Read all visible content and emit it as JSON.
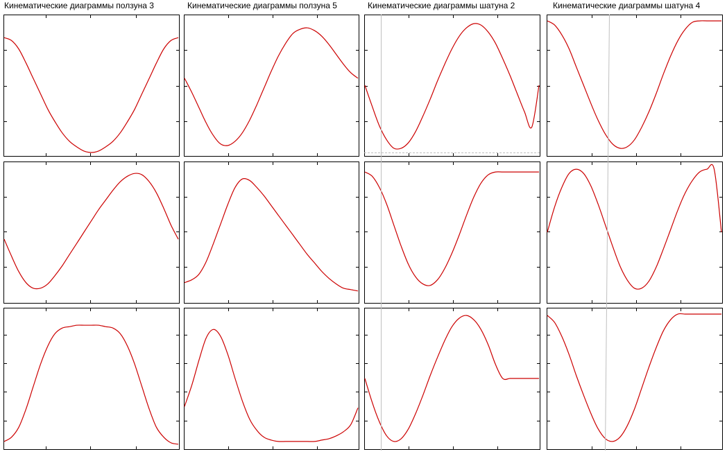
{
  "colors": {
    "curve": "#cc0000",
    "frame": "#000000",
    "cursor": "#bfbfbf",
    "background": "#ffffff"
  },
  "chart_data": [
    {
      "title": "Кинематические диаграммы ползуна 3",
      "type": "line",
      "rows": [
        {
          "x": [
            0,
            1,
            2,
            3,
            4,
            5,
            6,
            7,
            8,
            9,
            10,
            11,
            12,
            13,
            14,
            15,
            16,
            17,
            18,
            19,
            20,
            21,
            22,
            23,
            24
          ],
          "values": [
            0.84,
            0.82,
            0.76,
            0.66,
            0.55,
            0.44,
            0.33,
            0.24,
            0.16,
            0.1,
            0.06,
            0.03,
            0.02,
            0.03,
            0.06,
            0.1,
            0.16,
            0.24,
            0.33,
            0.44,
            0.55,
            0.66,
            0.76,
            0.82,
            0.84
          ],
          "ylim": [
            0,
            1
          ]
        },
        {
          "x": [
            0,
            1,
            2,
            3,
            4,
            5,
            6,
            7,
            8,
            9,
            10,
            11,
            12,
            13,
            14,
            15,
            16,
            17,
            18,
            19,
            20,
            21,
            22,
            23,
            24
          ],
          "values": [
            0.45,
            0.33,
            0.22,
            0.14,
            0.1,
            0.1,
            0.13,
            0.19,
            0.26,
            0.34,
            0.42,
            0.5,
            0.58,
            0.66,
            0.73,
            0.8,
            0.86,
            0.9,
            0.92,
            0.91,
            0.86,
            0.78,
            0.67,
            0.55,
            0.45
          ],
          "ylim": [
            0,
            1
          ]
        },
        {
          "x": [
            0,
            1,
            2,
            3,
            4,
            5,
            6,
            7,
            8,
            9,
            10,
            11,
            12,
            13,
            14,
            15,
            16,
            17,
            18,
            19,
            20,
            21,
            22,
            23,
            24
          ],
          "values": [
            0.05,
            0.08,
            0.15,
            0.28,
            0.44,
            0.6,
            0.73,
            0.82,
            0.86,
            0.87,
            0.88,
            0.88,
            0.88,
            0.88,
            0.87,
            0.86,
            0.82,
            0.73,
            0.6,
            0.44,
            0.28,
            0.15,
            0.08,
            0.04,
            0.03
          ],
          "ylim": [
            0,
            1
          ]
        }
      ]
    },
    {
      "title": "Кинематические диаграммы ползуна 5",
      "type": "line",
      "rows": [
        {
          "x": [
            0,
            1,
            2,
            3,
            4,
            5,
            6,
            7,
            8,
            9,
            10,
            11,
            12,
            13,
            14,
            15,
            16,
            17,
            18,
            19,
            20,
            21,
            22,
            23,
            24
          ],
          "values": [
            0.55,
            0.45,
            0.34,
            0.23,
            0.14,
            0.08,
            0.07,
            0.1,
            0.16,
            0.25,
            0.36,
            0.48,
            0.6,
            0.71,
            0.8,
            0.87,
            0.9,
            0.91,
            0.89,
            0.85,
            0.79,
            0.72,
            0.65,
            0.59,
            0.55
          ],
          "ylim": [
            0,
            1
          ]
        },
        {
          "x": [
            0,
            1,
            2,
            3,
            4,
            5,
            6,
            7,
            8,
            9,
            10,
            11,
            12,
            13,
            14,
            15,
            16,
            17,
            18,
            19,
            20,
            21,
            22,
            23,
            24
          ],
          "values": [
            0.14,
            0.16,
            0.2,
            0.29,
            0.42,
            0.56,
            0.7,
            0.82,
            0.88,
            0.87,
            0.82,
            0.76,
            0.69,
            0.62,
            0.55,
            0.48,
            0.41,
            0.34,
            0.28,
            0.22,
            0.17,
            0.13,
            0.1,
            0.09,
            0.08
          ],
          "ylim": [
            0,
            1
          ]
        },
        {
          "x": [
            0,
            1,
            2,
            3,
            4,
            5,
            6,
            7,
            8,
            9,
            10,
            11,
            12,
            13,
            14,
            15,
            16,
            17,
            18,
            19,
            20,
            21,
            22,
            23,
            24
          ],
          "values": [
            0.3,
            0.45,
            0.63,
            0.79,
            0.85,
            0.8,
            0.67,
            0.5,
            0.34,
            0.21,
            0.13,
            0.08,
            0.06,
            0.05,
            0.05,
            0.05,
            0.05,
            0.05,
            0.05,
            0.06,
            0.07,
            0.09,
            0.12,
            0.17,
            0.29
          ],
          "ylim": [
            0,
            1
          ]
        }
      ]
    },
    {
      "title": "Кинематические диаграммы шатуна 2",
      "type": "line",
      "rows": [
        {
          "x": [
            0,
            1,
            2,
            3,
            4,
            5,
            6,
            7,
            8,
            9,
            10,
            11,
            12,
            13,
            14,
            15,
            16,
            17,
            18,
            19,
            20,
            21,
            22,
            23,
            24
          ],
          "values": [
            0.5,
            0.35,
            0.21,
            0.11,
            0.05,
            0.05,
            0.09,
            0.17,
            0.28,
            0.4,
            0.53,
            0.65,
            0.76,
            0.85,
            0.91,
            0.94,
            0.93,
            0.88,
            0.8,
            0.69,
            0.57,
            0.44,
            0.31,
            0.2,
            0.5
          ],
          "ylim": [
            0,
            1
          ]
        },
        {
          "x": [
            0,
            1,
            2,
            3,
            4,
            5,
            6,
            7,
            8,
            9,
            10,
            11,
            12,
            13,
            14,
            15,
            16,
            17,
            18,
            19,
            20,
            21,
            22,
            23,
            24
          ],
          "values": [
            0.93,
            0.9,
            0.82,
            0.7,
            0.55,
            0.4,
            0.27,
            0.18,
            0.13,
            0.12,
            0.16,
            0.24,
            0.35,
            0.48,
            0.62,
            0.75,
            0.85,
            0.91,
            0.93,
            0.93,
            0.93,
            0.93,
            0.93,
            0.93,
            0.93
          ],
          "ylim": [
            0,
            1
          ]
        },
        {
          "x": [
            0,
            1,
            2,
            3,
            4,
            5,
            6,
            7,
            8,
            9,
            10,
            11,
            12,
            13,
            14,
            15,
            16,
            17,
            18,
            19,
            20,
            21,
            22,
            23,
            24
          ],
          "values": [
            0.5,
            0.33,
            0.19,
            0.09,
            0.05,
            0.07,
            0.14,
            0.25,
            0.38,
            0.52,
            0.65,
            0.77,
            0.87,
            0.93,
            0.95,
            0.92,
            0.85,
            0.74,
            0.6,
            0.5,
            0.5,
            0.5,
            0.5,
            0.5,
            0.5
          ],
          "ylim": [
            0,
            1
          ]
        }
      ]
    },
    {
      "title": "Кинематические диаграммы шатуна 4",
      "type": "line",
      "rows": [
        {
          "x": [
            0,
            1,
            2,
            3,
            4,
            5,
            6,
            7,
            8,
            9,
            10,
            11,
            12,
            13,
            14,
            15,
            16,
            17,
            18,
            19,
            20,
            21,
            22,
            23,
            24
          ],
          "values": [
            0.96,
            0.93,
            0.86,
            0.76,
            0.63,
            0.5,
            0.37,
            0.25,
            0.15,
            0.08,
            0.05,
            0.06,
            0.11,
            0.2,
            0.31,
            0.44,
            0.58,
            0.71,
            0.82,
            0.9,
            0.95,
            0.96,
            0.96,
            0.96,
            0.96
          ],
          "ylim": [
            0,
            1
          ]
        },
        {
          "x": [
            0,
            1,
            2,
            3,
            4,
            5,
            6,
            7,
            8,
            9,
            10,
            11,
            12,
            13,
            14,
            15,
            16,
            17,
            18,
            19,
            20,
            21,
            22,
            23,
            24
          ],
          "values": [
            0.5,
            0.68,
            0.82,
            0.92,
            0.95,
            0.92,
            0.83,
            0.7,
            0.55,
            0.4,
            0.26,
            0.16,
            0.1,
            0.1,
            0.15,
            0.25,
            0.38,
            0.52,
            0.66,
            0.78,
            0.87,
            0.93,
            0.95,
            0.95,
            0.5
          ],
          "ylim": [
            0,
            1
          ]
        },
        {
          "x": [
            0,
            1,
            2,
            3,
            4,
            5,
            6,
            7,
            8,
            9,
            10,
            11,
            12,
            13,
            14,
            15,
            16,
            17,
            18,
            19,
            20,
            21,
            22,
            23,
            24
          ],
          "values": [
            0.95,
            0.9,
            0.8,
            0.67,
            0.52,
            0.38,
            0.25,
            0.14,
            0.07,
            0.05,
            0.08,
            0.16,
            0.28,
            0.43,
            0.58,
            0.72,
            0.84,
            0.92,
            0.96,
            0.96,
            0.96,
            0.96,
            0.96,
            0.96,
            0.96
          ],
          "ylim": [
            0,
            1
          ]
        }
      ]
    }
  ]
}
